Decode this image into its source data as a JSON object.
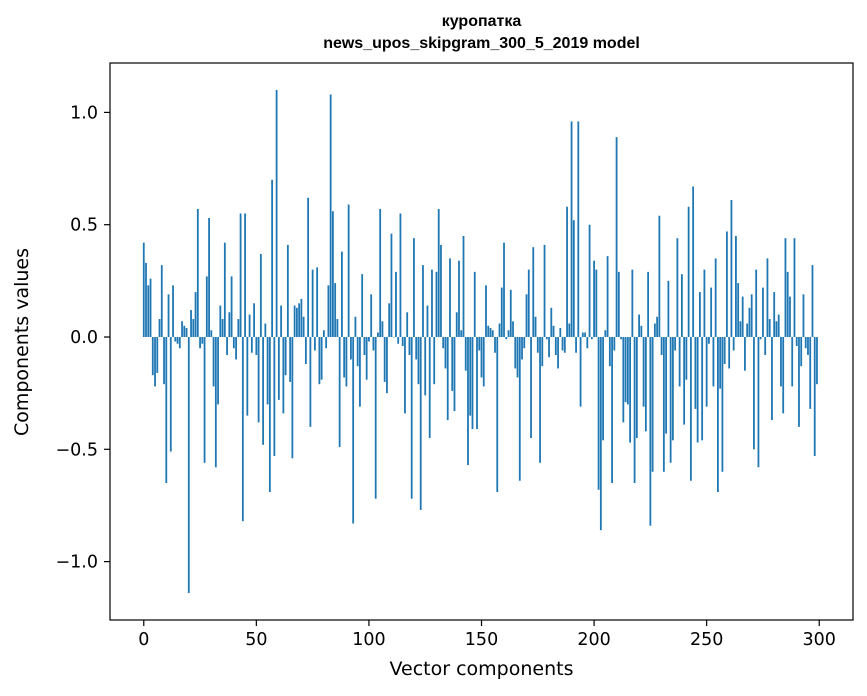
{
  "chart_data": {
    "type": "bar",
    "title": "куропатка",
    "subtitle": "news_upos_skipgram_300_5_2019 model",
    "xlabel": "Vector components",
    "ylabel": "Components values",
    "xlim": [
      -15,
      315
    ],
    "ylim": [
      -1.26,
      1.22
    ],
    "xticks": [
      0,
      50,
      100,
      150,
      200,
      250,
      300
    ],
    "xtick_labels": [
      "0",
      "50",
      "100",
      "150",
      "200",
      "250",
      "300"
    ],
    "yticks": [
      -1.0,
      -0.5,
      0.0,
      0.5,
      1.0
    ],
    "ytick_labels": [
      "−1.0",
      "−0.5",
      "0.0",
      "0.5",
      "1.0"
    ],
    "grid": false,
    "bar_color": "#1f77b4",
    "values": [
      0.42,
      0.33,
      0.23,
      0.26,
      -0.17,
      -0.22,
      -0.16,
      0.08,
      0.32,
      -0.21,
      -0.65,
      0.19,
      -0.51,
      0.23,
      -0.02,
      -0.03,
      -0.05,
      0.07,
      0.05,
      0.04,
      -1.14,
      0.12,
      0.08,
      0.2,
      0.57,
      -0.05,
      -0.03,
      -0.56,
      0.27,
      0.53,
      0.03,
      -0.22,
      -0.58,
      -0.3,
      0.14,
      0.08,
      0.42,
      -0.08,
      0.11,
      0.27,
      -0.05,
      -0.1,
      0.08,
      0.55,
      -0.82,
      0.55,
      -0.35,
      0.1,
      -0.07,
      0.15,
      -0.08,
      -0.38,
      0.37,
      -0.48,
      0.06,
      -0.3,
      -0.69,
      0.7,
      -0.53,
      1.1,
      -0.28,
      0.14,
      -0.34,
      -0.17,
      0.41,
      -0.2,
      -0.54,
      0.14,
      0.13,
      0.15,
      0.17,
      0.09,
      -0.12,
      0.62,
      -0.4,
      0.3,
      -0.06,
      0.31,
      -0.21,
      -0.19,
      0.03,
      -0.05,
      0.23,
      1.08,
      0.56,
      0.24,
      0.08,
      -0.49,
      0.38,
      -0.18,
      -0.22,
      0.59,
      -0.1,
      -0.83,
      0.09,
      -0.13,
      -0.31,
      0.28,
      -0.08,
      -0.19,
      -0.02,
      0.19,
      -0.06,
      -0.72,
      0.02,
      0.57,
      0.07,
      -0.2,
      -0.25,
      0.15,
      0.46,
      0.0,
      0.29,
      -0.03,
      0.55,
      -0.04,
      -0.34,
      0.11,
      -0.08,
      -0.72,
      0.44,
      -0.1,
      -0.21,
      -0.77,
      0.32,
      -0.26,
      0.14,
      -0.45,
      0.3,
      -0.21,
      0.29,
      0.57,
      0.41,
      -0.05,
      -0.14,
      -0.37,
      0.35,
      -0.24,
      -0.33,
      0.11,
      0.34,
      0.03,
      0.45,
      -0.15,
      -0.57,
      -0.35,
      -0.41,
      0.29,
      -0.41,
      -0.06,
      -0.18,
      -0.22,
      0.23,
      0.05,
      0.04,
      0.03,
      -0.07,
      -0.69,
      0.06,
      0.22,
      0.42,
      -0.01,
      0.03,
      0.21,
      0.07,
      -0.14,
      -0.18,
      -0.64,
      -0.1,
      -0.05,
      0.19,
      0.3,
      -0.45,
      0.4,
      0.09,
      -0.07,
      -0.56,
      -0.13,
      0.41,
      -0.01,
      -0.09,
      0.13,
      0.05,
      -0.08,
      -0.14,
      0.04,
      -0.06,
      -0.07,
      0.58,
      0.06,
      0.96,
      0.52,
      -0.07,
      0.96,
      -0.31,
      0.02,
      0.02,
      -0.05,
      0.5,
      -0.01,
      0.34,
      0.3,
      -0.68,
      -0.86,
      -0.46,
      0.03,
      0.36,
      -0.13,
      -0.65,
      -0.06,
      0.89,
      0.29,
      -0.01,
      -0.38,
      -0.29,
      -0.3,
      -0.47,
      0.3,
      -0.65,
      -0.45,
      0.1,
      0.05,
      -0.31,
      -0.42,
      0.29,
      -0.84,
      -0.6,
      0.06,
      0.09,
      0.54,
      -0.08,
      -0.6,
      -0.43,
      0.25,
      -0.56,
      -0.46,
      -0.06,
      0.44,
      -0.22,
      0.28,
      -0.39,
      -0.19,
      0.58,
      -0.64,
      0.67,
      -0.32,
      -0.47,
      0.2,
      -0.46,
      0.3,
      -0.31,
      -0.03,
      0.22,
      -0.22,
      0.35,
      -0.69,
      -0.23,
      -0.6,
      -0.12,
      0.47,
      -0.14,
      0.61,
      -0.06,
      0.45,
      0.24,
      0.07,
      0.18,
      -0.15,
      0.06,
      0.13,
      0.19,
      -0.5,
      0.3,
      -0.58,
      -0.01,
      0.22,
      -0.08,
      0.35,
      0.08,
      -0.37,
      0.2,
      0.07,
      0.1,
      -0.22,
      -0.34,
      0.44,
      0.29,
      0.18,
      -0.22,
      0.44,
      -0.04,
      -0.4,
      -0.13,
      0.19,
      -0.05,
      -0.08,
      -0.32,
      0.32,
      -0.53,
      -0.21
    ]
  }
}
